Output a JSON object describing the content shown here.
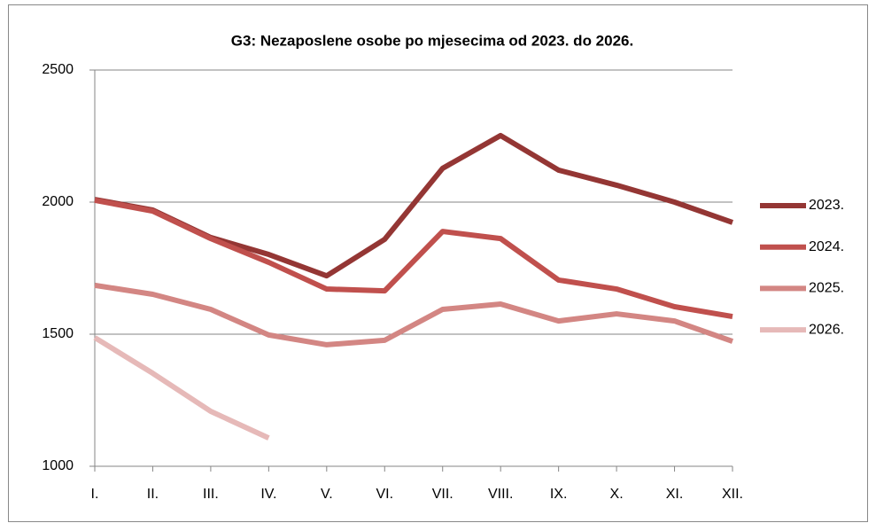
{
  "chart_data": {
    "type": "line",
    "title": "G3: Nezaposlene osobe po mjesecima od 2023. do 2026.",
    "categories": [
      "I.",
      "II.",
      "III.",
      "IV.",
      "V.",
      "VI.",
      "VII.",
      "VIII.",
      "IX.",
      "X.",
      "XI.",
      "XII."
    ],
    "series": [
      {
        "name": "2023.",
        "color": "#943634",
        "values": [
          2010,
          1970,
          1866,
          1802,
          1721,
          1859,
          2128,
          2252,
          2121,
          2064,
          2000,
          1923
        ]
      },
      {
        "name": "2024.",
        "color": "#c0504d",
        "values": [
          2007,
          1966,
          1862,
          1772,
          1671,
          1664,
          1889,
          1862,
          1705,
          1671,
          1604,
          1567
        ]
      },
      {
        "name": "2025.",
        "color": "#d38683",
        "values": [
          1685,
          1651,
          1594,
          1497,
          1460,
          1477,
          1594,
          1614,
          1550,
          1577,
          1550,
          1473
        ]
      },
      {
        "name": "2026.",
        "color": "#e6b9b8",
        "values": [
          1487,
          1352,
          1208,
          1107,
          null,
          null,
          null,
          null,
          null,
          null,
          null,
          null
        ]
      }
    ],
    "ylim": [
      1000,
      2500
    ],
    "yticks": [
      1000,
      1500,
      2000,
      2500
    ],
    "grid": true,
    "legend": "right"
  }
}
